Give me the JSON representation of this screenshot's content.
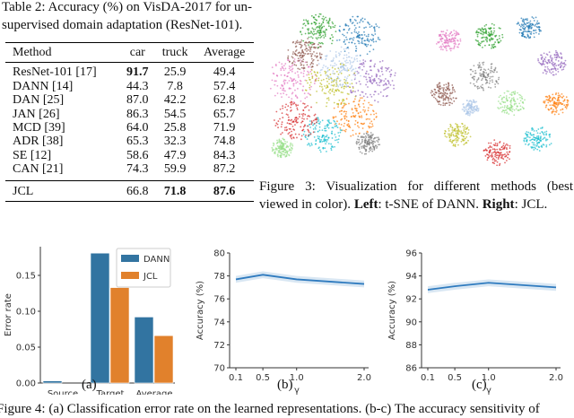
{
  "table": {
    "caption_line1": "Table 2: Accuracy (%) on VisDA-2017 for un-",
    "caption_line2": "supervised domain adaptation (ResNet-101).",
    "headers": [
      "Method",
      "car",
      "truck",
      "Average"
    ],
    "rows": [
      [
        "ResNet-101 [17]",
        "91.7",
        "25.9",
        "49.4"
      ],
      [
        "DANN [14]",
        "44.3",
        "7.8",
        "57.4"
      ],
      [
        "DAN [25]",
        "87.0",
        "42.2",
        "62.8"
      ],
      [
        "JAN [26]",
        "86.3",
        "54.5",
        "65.7"
      ],
      [
        "MCD [39]",
        "64.0",
        "25.8",
        "71.9"
      ],
      [
        "ADR [38]",
        "65.3",
        "32.3",
        "74.8"
      ],
      [
        "SE [12]",
        "58.6",
        "47.9",
        "84.3"
      ],
      [
        "CAN [21]",
        "74.3",
        "59.9",
        "87.2"
      ],
      [
        "JCL",
        "66.8",
        "71.8",
        "87.6"
      ]
    ],
    "bold": [
      [
        0,
        1
      ],
      [
        8,
        2
      ],
      [
        8,
        3
      ]
    ]
  },
  "figure3": {
    "caption_line1": "Figure 3:  Visualization for different methods (best",
    "caption_line2_a": "viewed in color).",
    "caption_line2_b": "Left",
    "caption_line2_c": ": t-SNE of DANN.",
    "caption_line2_d": "Right",
    "caption_line2_e": ": JCL."
  },
  "figure4": {
    "sub_labels": [
      "(a)",
      "(b)",
      "(c)"
    ],
    "caption": "Figure 4: (a) Classification error rate on the learned representations. (b-c) The accuracy sensitivity of"
  },
  "colors": {
    "dann": "#3274a1",
    "jcl": "#e1812c",
    "line": "#2f7bbf"
  },
  "chart_data": [
    {
      "type": "bar",
      "title": "",
      "xlabel": "",
      "ylabel": "Error rate",
      "categories": [
        "Source",
        "Target",
        "Average"
      ],
      "series": [
        {
          "name": "DANN",
          "values": [
            0.003,
            0.181,
            0.092
          ]
        },
        {
          "name": "JCL",
          "values": [
            0.0,
            0.133,
            0.066
          ]
        }
      ],
      "ylim": [
        0,
        0.19
      ],
      "yticks": [
        "0.00",
        "0.05",
        "0.10",
        "0.15"
      ],
      "legend": "top-right"
    },
    {
      "type": "line",
      "xlabel": "γ",
      "ylabel": "Accuracy (%)",
      "x": [
        0.1,
        0.5,
        1.0,
        2.0
      ],
      "xticks": [
        "0.1",
        "0.5",
        "1.0",
        "2.0"
      ],
      "values": [
        77.7,
        78.1,
        77.7,
        77.3
      ],
      "ylim": [
        70,
        80
      ],
      "yticks": [
        "70",
        "72",
        "74",
        "76",
        "78",
        "80"
      ]
    },
    {
      "type": "line",
      "xlabel": "γ",
      "ylabel": "Accuracy (%)",
      "x": [
        0.1,
        0.5,
        1.0,
        2.0
      ],
      "xticks": [
        "0.1",
        "0.5",
        "1.0",
        "2.0"
      ],
      "values": [
        92.8,
        93.1,
        93.4,
        93.0
      ],
      "ylim": [
        86,
        96
      ],
      "yticks": [
        "86",
        "88",
        "90",
        "92",
        "94",
        "96"
      ]
    }
  ]
}
